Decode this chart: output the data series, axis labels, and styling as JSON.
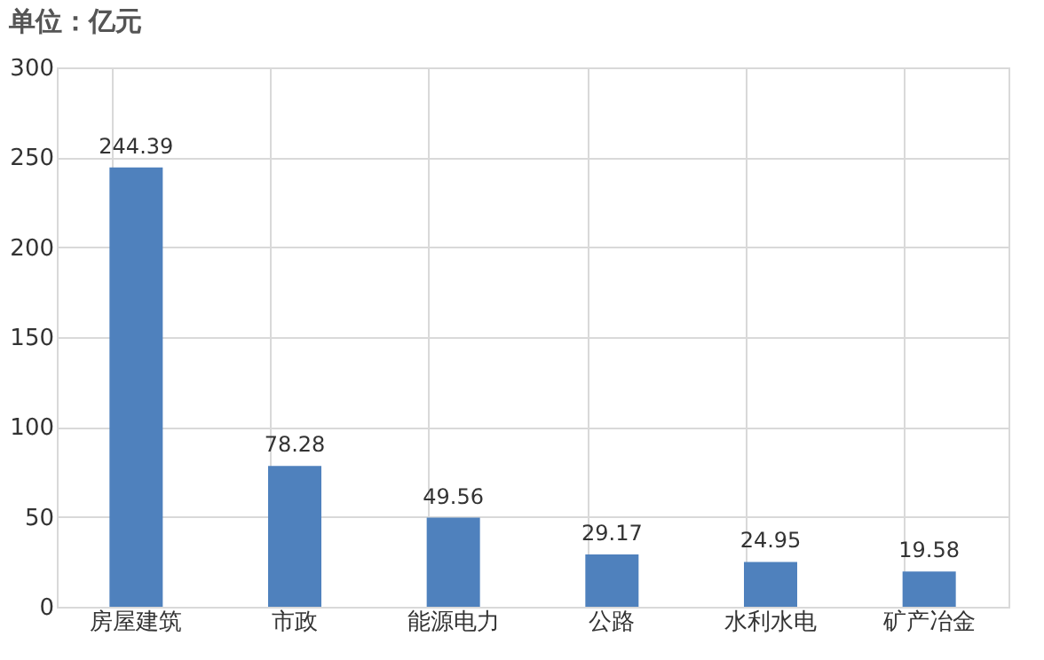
{
  "chart_data": {
    "type": "bar",
    "ylabel": "单位：亿元",
    "categories": [
      "房屋建筑",
      "市政",
      "能源电力",
      "公路",
      "水利水电",
      "矿产冶金"
    ],
    "values": [
      244.39,
      78.28,
      49.56,
      29.17,
      24.95,
      19.58
    ],
    "color": "#4f81bd",
    "ylim": [
      0,
      300
    ],
    "yticks": [
      0,
      50,
      100,
      150,
      200,
      250,
      300
    ],
    "grid": true,
    "data_labels": true
  }
}
